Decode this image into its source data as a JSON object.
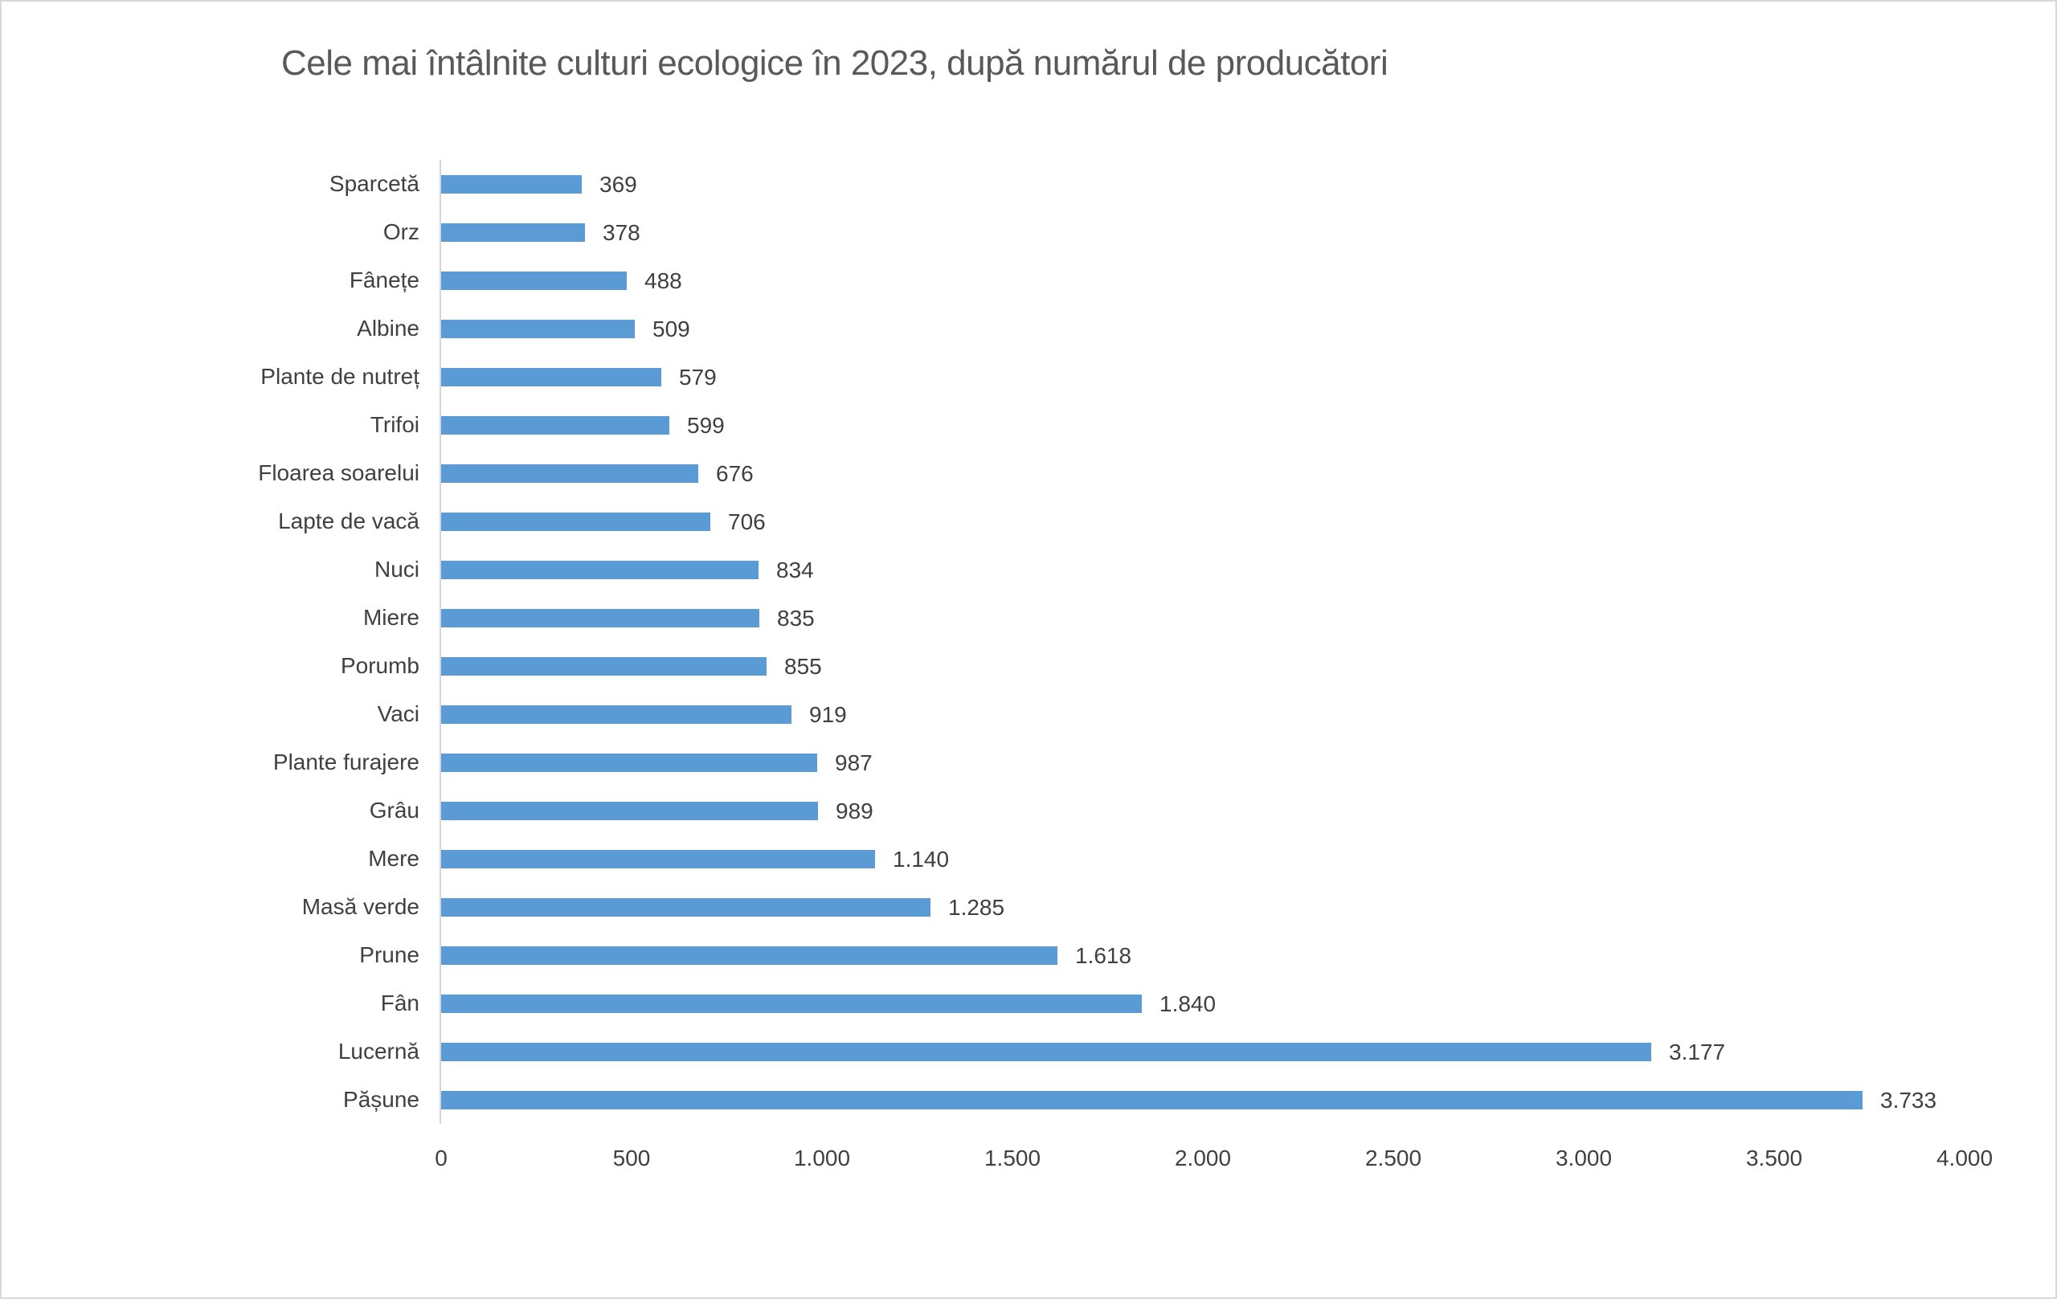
{
  "page": {
    "background": "#ffffff",
    "frame_border_color": "#d9d9d9"
  },
  "chart_data": {
    "type": "bar",
    "orientation": "horizontal",
    "title": "Cele mai întâlnite culturi ecologice în 2023, după numărul de producători",
    "categories": [
      "Sparcetă",
      "Orz",
      "Fânețe",
      "Albine",
      "Plante de nutreț",
      "Trifoi",
      "Floarea soarelui",
      "Lapte de vacă",
      "Nuci",
      "Miere",
      "Porumb",
      "Vaci",
      "Plante furajere",
      "Grâu",
      "Mere",
      "Masă verde",
      "Prune",
      "Fân",
      "Lucernă",
      "Pășune"
    ],
    "values": [
      369,
      378,
      488,
      509,
      579,
      599,
      676,
      706,
      834,
      835,
      855,
      919,
      987,
      989,
      1140,
      1285,
      1618,
      1840,
      3177,
      3733
    ],
    "value_labels": [
      "369",
      "378",
      "488",
      "509",
      "579",
      "599",
      "676",
      "706",
      "834",
      "835",
      "855",
      "919",
      "987",
      "989",
      "1.140",
      "1.285",
      "1.618",
      "1.840",
      "3.177",
      "3.733"
    ],
    "xlabel": "",
    "ylabel": "",
    "xlim": [
      0,
      4000
    ],
    "x_tick_values": [
      0,
      500,
      1000,
      1500,
      2000,
      2500,
      3000,
      3500,
      4000
    ],
    "x_tick_labels": [
      "0",
      "500",
      "1.000",
      "1.500",
      "2.000",
      "2.500",
      "3.000",
      "3.500",
      "4.000"
    ],
    "grid": false,
    "legend": false,
    "data_labels_shown": true,
    "colors": {
      "bar": "#5B9BD5",
      "axis_line": "#D6D6D6",
      "title_text": "#595959",
      "category_text": "#404040",
      "value_text": "#404040",
      "tick_text": "#404040"
    }
  }
}
